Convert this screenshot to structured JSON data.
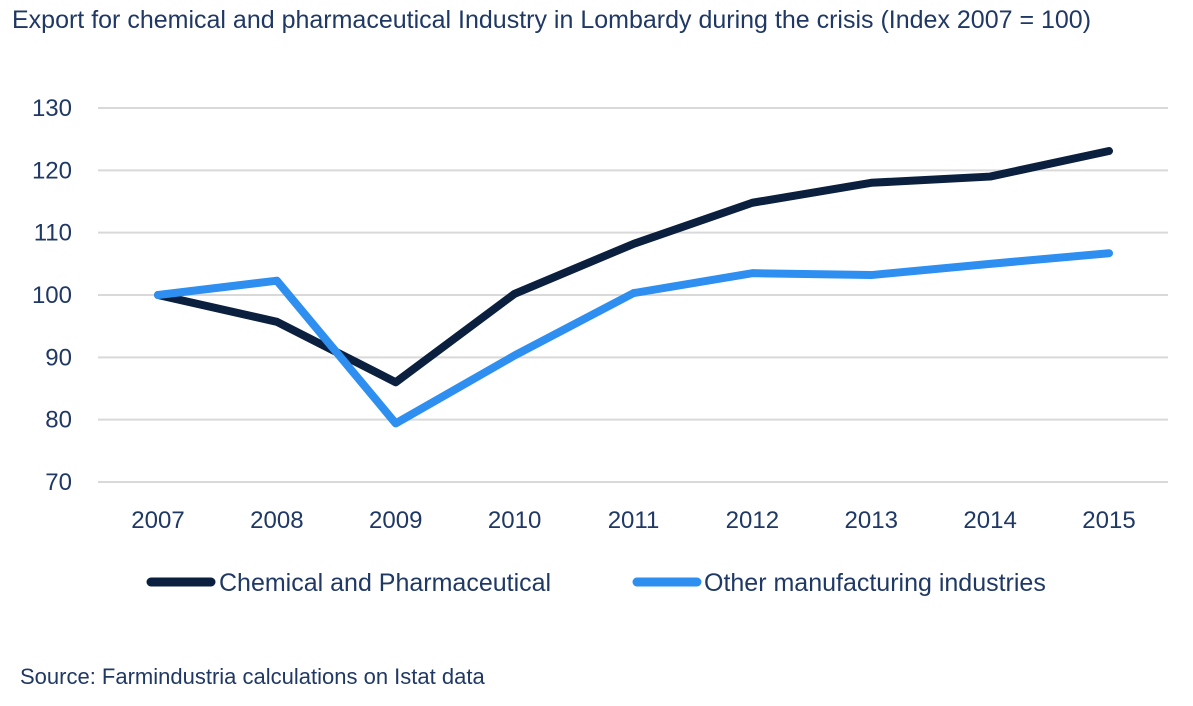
{
  "chart_data": {
    "type": "line",
    "title": "Export for chemical and pharmaceutical Industry in Lombardy during the crisis (Index 2007 = 100)",
    "source": "Source: Farmindustria calculations on Istat data",
    "categories": [
      "2007",
      "2008",
      "2009",
      "2010",
      "2011",
      "2012",
      "2013",
      "2014",
      "2015"
    ],
    "series": [
      {
        "name": "Chemical and Pharmaceutical",
        "color": "#0b1f3f",
        "values": [
          100,
          95.7,
          86,
          100.2,
          108.2,
          114.8,
          118,
          119,
          123.1
        ]
      },
      {
        "name": "Other manufacturing industries",
        "color": "#2e8ff0",
        "values": [
          100,
          102.3,
          79.4,
          90.3,
          100.3,
          103.5,
          103.2,
          105,
          106.7
        ]
      }
    ],
    "ylim": [
      70,
      130
    ],
    "yticks": [
      70,
      80,
      90,
      100,
      110,
      120,
      130
    ],
    "grid": true,
    "legend": "bottom"
  }
}
